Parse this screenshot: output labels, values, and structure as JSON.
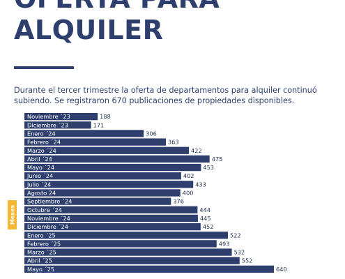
{
  "header": {
    "title": "OFERTA PARA ALQUILER",
    "intro": [
      "Durante el tercer trimestre la oferta de departamentos para alquiler continuó",
      "subiendo. Se registraron 670 publicaciones de propiedades disponibles."
    ]
  },
  "colors": {
    "bar": "#2e3f6e",
    "accent": "#f5b731",
    "text": "#2e3f6e"
  },
  "chart_data": {
    "type": "bar",
    "orientation": "horizontal",
    "ylabel": "Meses",
    "categories": [
      "Noviembre ´23",
      "Diciembre ´23",
      "Enero ´24",
      "Febrero ´24",
      "Marzo ´24",
      "Abril ´24",
      "Mayo ´24",
      "Junio ´24",
      "Julio ´24",
      "Agosto 24",
      "Septiembre ´24",
      "Octubre ´24",
      "Noviembre ´24",
      "Diciembre ´24",
      "Enero ´25",
      "Febrero ´25",
      "Marzo ´25",
      "Abril ´25",
      "Mayo ´25"
    ],
    "values": [
      188,
      171,
      306,
      363,
      422,
      475,
      453,
      402,
      433,
      400,
      376,
      444,
      445,
      452,
      522,
      493,
      532,
      552,
      640
    ],
    "data_labels": [
      "188",
      "171",
      "306",
      "363",
      "422",
      "475",
      "453",
      "402",
      "433",
      "400",
      "376",
      "444",
      "445",
      "452",
      "522",
      "493",
      "532",
      "552",
      "640"
    ]
  }
}
